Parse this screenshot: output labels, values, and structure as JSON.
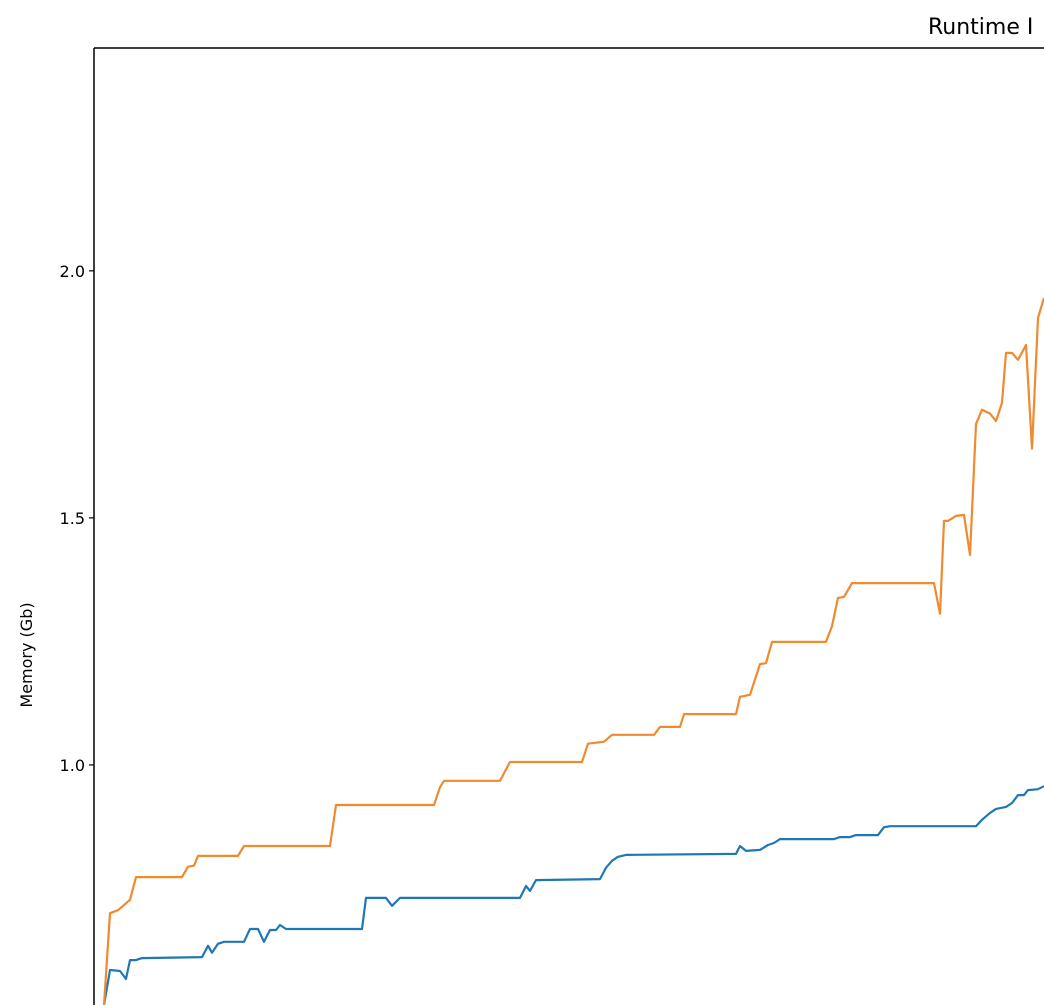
{
  "chart_data": {
    "type": "line",
    "title": "Runtime I",
    "y_label": "Memory (Gb)",
    "xlim": [
      0,
      950
    ],
    "ylim": [
      0.45,
      2.451
    ],
    "yticks": [
      {
        "value": 1,
        "label": "1.0"
      },
      {
        "value": 1.5,
        "label": "1.5"
      },
      {
        "value": 2,
        "label": "2.0"
      }
    ],
    "series": [
      {
        "color": "#1f77b4",
        "x": [
          10,
          16,
          26,
          32,
          36,
          42,
          48,
          108,
          114,
          118,
          124,
          130,
          150,
          156,
          164,
          170,
          176,
          182,
          186,
          192,
          268,
          272,
          292,
          298,
          306,
          426,
          432,
          436,
          442,
          506,
          512,
          518,
          524,
          532,
          642,
          646,
          652,
          666,
          674,
          680,
          686,
          740,
          746,
          756,
          762,
          784,
          790,
          796,
          882,
          888,
          896,
          902,
          912,
          918,
          924,
          930,
          934,
          944,
          950
        ],
        "values": [
          0.514,
          0.585,
          0.583,
          0.567,
          0.605,
          0.605,
          0.609,
          0.611,
          0.634,
          0.62,
          0.638,
          0.642,
          0.642,
          0.668,
          0.668,
          0.642,
          0.666,
          0.666,
          0.676,
          0.668,
          0.668,
          0.731,
          0.731,
          0.715,
          0.731,
          0.731,
          0.755,
          0.745,
          0.767,
          0.769,
          0.792,
          0.806,
          0.814,
          0.818,
          0.82,
          0.836,
          0.826,
          0.828,
          0.838,
          0.842,
          0.85,
          0.85,
          0.854,
          0.854,
          0.858,
          0.858,
          0.874,
          0.876,
          0.876,
          0.889,
          0.903,
          0.911,
          0.915,
          0.923,
          0.939,
          0.939,
          0.949,
          0.951,
          0.957
        ]
      },
      {
        "color": "#f08a30",
        "x": [
          10,
          16,
          24,
          36,
          42,
          88,
          94,
          100,
          104,
          144,
          150,
          236,
          242,
          340,
          346,
          350,
          406,
          416,
          488,
          494,
          510,
          518,
          560,
          566,
          586,
          590,
          642,
          646,
          656,
          666,
          672,
          678,
          732,
          738,
          744,
          750,
          758,
          840,
          846,
          850,
          854,
          862,
          870,
          876,
          882,
          888,
          896,
          902,
          908,
          912,
          918,
          924,
          932,
          938,
          944,
          950
        ],
        "values": [
          0.514,
          0.7,
          0.706,
          0.727,
          0.773,
          0.773,
          0.794,
          0.796,
          0.816,
          0.816,
          0.836,
          0.836,
          0.919,
          0.919,
          0.955,
          0.968,
          0.968,
          1.006,
          1.006,
          1.043,
          1.047,
          1.061,
          1.061,
          1.077,
          1.077,
          1.103,
          1.103,
          1.138,
          1.142,
          1.204,
          1.206,
          1.249,
          1.249,
          1.281,
          1.338,
          1.34,
          1.368,
          1.368,
          1.306,
          1.494,
          1.494,
          1.504,
          1.506,
          1.425,
          1.69,
          1.719,
          1.711,
          1.696,
          1.733,
          1.834,
          1.834,
          1.82,
          1.85,
          1.64,
          1.905,
          1.945
        ]
      }
    ]
  }
}
